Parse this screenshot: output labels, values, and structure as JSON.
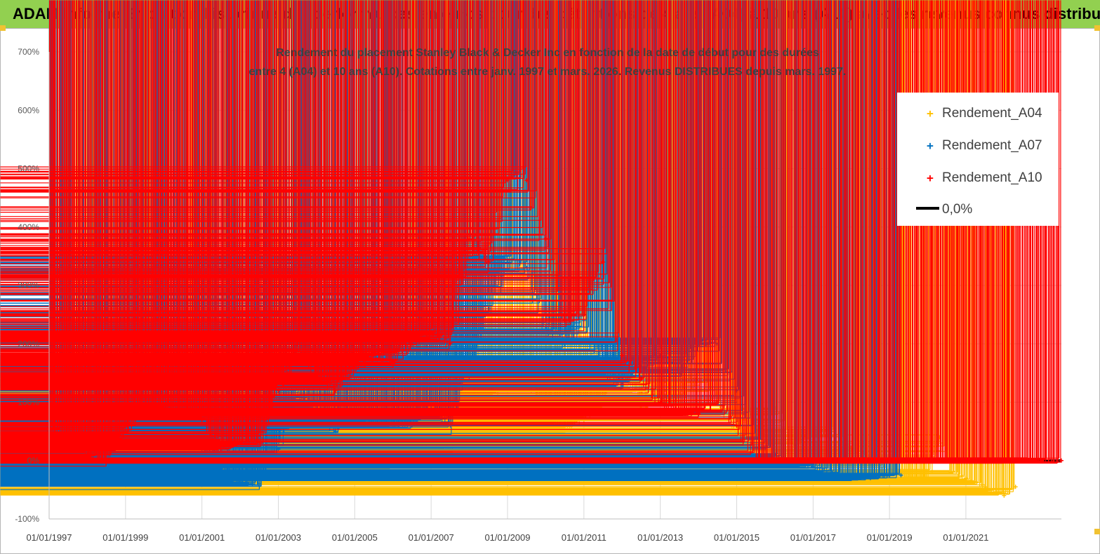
{
  "header": {
    "title": "ADAM Informe. Evolution historique des performances en euros pour des détentions de 4 ans (A04) à 10 ans (A10) avec les revenus connus distribués"
  },
  "colors": {
    "banner": "#92d050",
    "A04": "#ffc000",
    "A07": "#0070c0",
    "A10": "#ff0000",
    "zero": "#000000",
    "grid": "#d9d9d9"
  },
  "chart_data": {
    "type": "scatter",
    "title_lines": [
      "Rendement du placement Stanley Black & Decker Inc en fonction de la date de début pour des durées",
      "entre 4 (A04) et 10 ans (A10). Cotations entre janv. 1997 et mars. 2026. Revenus DISTRIBUES depuis mars. 1997."
    ],
    "xlabel": "",
    "ylabel": "",
    "x_unit": "date (year)",
    "xlim": [
      1997.0,
      2023.5
    ],
    "ylim": [
      -100,
      700
    ],
    "y_ticks": [
      "-100%",
      "0%",
      "100%",
      "200%",
      "300%",
      "400%",
      "500%",
      "600%",
      "700%"
    ],
    "x_ticks": [
      "01/01/1997",
      "01/01/1999",
      "01/01/2001",
      "01/01/2003",
      "01/01/2005",
      "01/01/2007",
      "01/01/2009",
      "01/01/2011",
      "01/01/2013",
      "01/01/2015",
      "01/01/2017",
      "01/01/2019",
      "01/01/2021"
    ],
    "legend_position": "top-right",
    "grid": "horizontal",
    "series": [
      {
        "name": "Rendement_A04",
        "marker": "+",
        "x": [
          1997.0,
          1997.5,
          1998.0,
          1998.5,
          1999.0,
          1999.5,
          2000.0,
          2000.5,
          2001.0,
          2001.5,
          2002.0,
          2002.5,
          2003.0,
          2003.5,
          2004.0,
          2004.5,
          2005.0,
          2005.5,
          2006.0,
          2006.5,
          2007.0,
          2007.5,
          2008.0,
          2008.5,
          2009.0,
          2009.5,
          2010.0,
          2010.5,
          2011.0,
          2011.5,
          2012.0,
          2012.5,
          2013.0,
          2013.5,
          2014.0,
          2014.5,
          2015.0,
          2015.5,
          2016.0,
          2016.5,
          2017.0,
          2017.5,
          2018.0,
          2018.5,
          2019.0,
          2019.5,
          2020.0,
          2020.3,
          2020.6,
          2021.0,
          2021.5,
          2022.0,
          2022.3
        ],
        "y": [
          20,
          30,
          20,
          10,
          40,
          -15,
          20,
          35,
          40,
          5,
          -20,
          -15,
          20,
          90,
          20,
          -5,
          -25,
          -30,
          -5,
          20,
          30,
          15,
          90,
          90,
          160,
          140,
          70,
          50,
          70,
          100,
          150,
          90,
          110,
          100,
          150,
          100,
          50,
          20,
          90,
          30,
          40,
          50,
          20,
          5,
          -20,
          -30,
          -35,
          40,
          -20,
          -30,
          -45,
          -60,
          -45
        ]
      },
      {
        "name": "Rendement_A07",
        "marker": "+",
        "x": [
          1997.0,
          1997.5,
          1998.0,
          1998.5,
          1999.0,
          1999.5,
          2000.0,
          2000.5,
          2001.0,
          2001.5,
          2002.0,
          2002.5,
          2003.0,
          2003.5,
          2004.0,
          2004.5,
          2005.0,
          2005.5,
          2006.0,
          2006.5,
          2007.0,
          2007.5,
          2008.0,
          2008.5,
          2009.0,
          2009.5,
          2010.0,
          2010.5,
          2011.0,
          2011.5,
          2012.0,
          2012.5,
          2013.0,
          2013.5,
          2014.0,
          2014.5,
          2015.0,
          2015.5,
          2016.0,
          2016.5,
          2017.0,
          2017.5,
          2018.0,
          2018.5,
          2019.0,
          2019.3
        ],
        "y": [
          20,
          10,
          -10,
          20,
          100,
          50,
          110,
          80,
          20,
          -10,
          -40,
          -40,
          20,
          110,
          90,
          50,
          70,
          60,
          60,
          60,
          95,
          60,
          160,
          260,
          340,
          330,
          230,
          200,
          240,
          150,
          130,
          160,
          180,
          150,
          200,
          200,
          120,
          40,
          10,
          -5,
          -10,
          -20,
          -30,
          -30,
          -25,
          -25
        ]
      },
      {
        "name": "Rendement_A10",
        "marker": "+",
        "x": [
          1997.0,
          1997.5,
          1998.0,
          1998.5,
          1999.0,
          1999.5,
          2000.0,
          2000.5,
          2001.0,
          2001.5,
          2002.0,
          2002.5,
          2003.0,
          2003.5,
          2004.0,
          2004.5,
          2005.0,
          2005.5,
          2006.0,
          2006.5,
          2007.0,
          2007.5,
          2008.0,
          2008.5,
          2009.0,
          2009.5,
          2010.0,
          2010.5,
          2011.0,
          2011.5,
          2012.0,
          2012.5,
          2013.0,
          2013.5,
          2014.0,
          2014.5,
          2015.0,
          2015.5,
          2016.0,
          2016.5,
          2017.0,
          2018.0,
          2019.0,
          2020.0,
          2021.0,
          2022.0,
          2023.0,
          2023.5
        ],
        "y": [
          60,
          40,
          10,
          0,
          50,
          80,
          90,
          80,
          70,
          20,
          30,
          30,
          120,
          200,
          150,
          120,
          160,
          180,
          170,
          200,
          220,
          200,
          380,
          340,
          480,
          480,
          380,
          240,
          250,
          340,
          180,
          140,
          100,
          80,
          80,
          100,
          60,
          0,
          0,
          0,
          0,
          0,
          0,
          0,
          0,
          0,
          0,
          0
        ]
      },
      {
        "name": "0,0%",
        "type": "line",
        "x": [
          1997.0,
          2023.5
        ],
        "y": [
          0,
          0
        ]
      }
    ]
  }
}
